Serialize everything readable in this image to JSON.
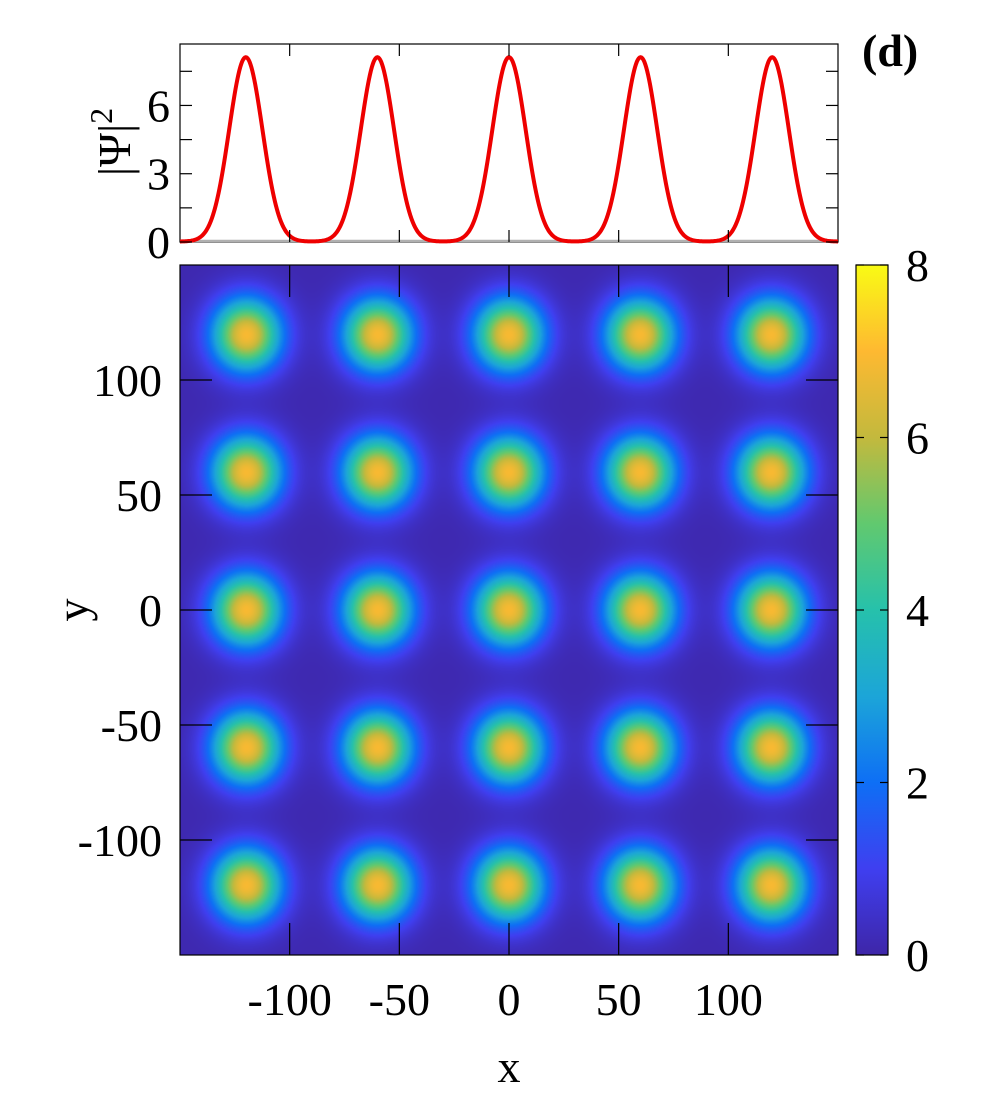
{
  "panel_label": "(d)",
  "chart_data": [
    {
      "type": "line",
      "ylabel": "|Ψ|",
      "ylabel_superscript": "2",
      "xlim": [
        -150,
        150
      ],
      "ylim": [
        0,
        8.7
      ],
      "yticks": [
        0,
        3,
        6
      ],
      "ytick_labels": [
        "0",
        "3",
        "6"
      ],
      "xticks": [
        -100,
        -50,
        0,
        50,
        100
      ],
      "series": [
        {
          "color": "#ee0000",
          "peaks_x": [
            -120,
            -60,
            0,
            60,
            120
          ],
          "peak_value": 8.1,
          "gaussian_width": 7.6,
          "baseline": 0.02
        }
      ],
      "reference_line": {
        "y": 0,
        "color": "#b0b0b0"
      },
      "grid": false
    },
    {
      "type": "heatmap",
      "xlabel": "x",
      "ylabel": "y",
      "xlim": [
        -150,
        150
      ],
      "ylim": [
        -150,
        150
      ],
      "xticks": [
        -100,
        -50,
        0,
        50,
        100
      ],
      "xtick_labels": [
        "-100",
        "-50",
        "0",
        "50",
        "100"
      ],
      "yticks": [
        -100,
        -50,
        0,
        50,
        100
      ],
      "ytick_labels": [
        "-100",
        "-50",
        "0",
        "50",
        "100"
      ],
      "spots": {
        "x": [
          -120,
          -60,
          0,
          60,
          120
        ],
        "y": [
          -120,
          -60,
          0,
          60,
          120
        ],
        "peak_value": 6.8,
        "gaussian_width": 11
      },
      "background_value": 0.1,
      "grid": false,
      "colorbar": {
        "range": [
          0,
          8
        ],
        "ticks": [
          0,
          2,
          4,
          6,
          8
        ],
        "tick_labels": [
          "0",
          "2",
          "4",
          "6",
          "8"
        ],
        "placement": "right",
        "colormap": [
          "#3e26a8",
          "#3f3ff0",
          "#0e6ff5",
          "#1ca5d8",
          "#26c1ab",
          "#61c96f",
          "#c3b93d",
          "#feb931",
          "#f9fb14"
        ]
      }
    }
  ]
}
